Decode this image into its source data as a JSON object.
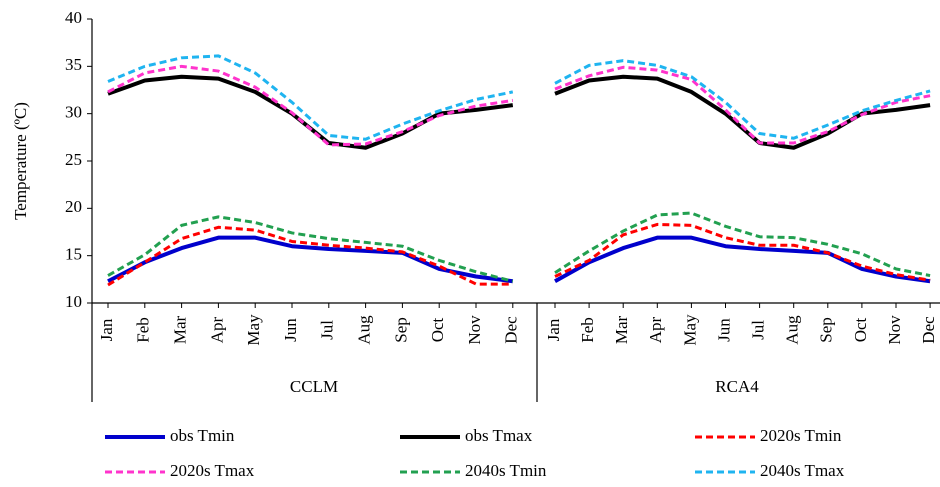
{
  "chart_data": {
    "type": "line",
    "y_label": "Temperature (ºC)",
    "ylim": [
      10,
      40
    ],
    "yticks": [
      10,
      15,
      20,
      25,
      30,
      35,
      40
    ],
    "categories": [
      "Jan",
      "Feb",
      "Mar",
      "Apr",
      "May",
      "Jun",
      "Jul",
      "Aug",
      "Sep",
      "Oct",
      "Nov",
      "Dec"
    ],
    "panels": [
      "CCLM",
      "RCA4"
    ],
    "series": [
      {
        "name": "obs Tmin",
        "color": "#0000cc",
        "dashed": false,
        "values": [
          [
            12.3,
            14.3,
            15.8,
            16.9,
            16.9,
            16.0,
            15.7,
            15.5,
            15.3,
            13.6,
            12.8,
            12.3
          ],
          [
            12.3,
            14.3,
            15.8,
            16.9,
            16.9,
            16.0,
            15.7,
            15.5,
            15.3,
            13.6,
            12.8,
            12.3
          ]
        ]
      },
      {
        "name": "obs Tmax",
        "color": "#000000",
        "dashed": false,
        "values": [
          [
            32.1,
            33.5,
            33.9,
            33.7,
            32.3,
            30.0,
            26.9,
            26.4,
            27.9,
            30.0,
            30.4,
            30.9
          ],
          [
            32.1,
            33.5,
            33.9,
            33.7,
            32.3,
            30.0,
            26.9,
            26.4,
            27.9,
            30.0,
            30.4,
            30.9
          ]
        ]
      },
      {
        "name": "2020s Tmin",
        "color": "#ff0000",
        "dashed": true,
        "values": [
          [
            11.9,
            14.3,
            16.8,
            18.0,
            17.7,
            16.5,
            16.1,
            15.8,
            15.4,
            13.9,
            12.0,
            12.0
          ],
          [
            12.8,
            14.5,
            17.2,
            18.3,
            18.2,
            16.9,
            16.1,
            16.1,
            15.3,
            13.9,
            13.0,
            12.4
          ]
        ]
      },
      {
        "name": "2020s Tmax",
        "color": "#ff33cc",
        "dashed": true,
        "values": [
          [
            32.3,
            34.3,
            35.0,
            34.5,
            32.8,
            30.1,
            26.7,
            26.8,
            28.1,
            29.8,
            30.8,
            31.4
          ],
          [
            32.6,
            34.0,
            34.9,
            34.6,
            33.6,
            30.4,
            26.9,
            26.9,
            28.1,
            29.9,
            31.2,
            31.9
          ]
        ]
      },
      {
        "name": "2040s Tmin",
        "color": "#22a050",
        "dashed": true,
        "values": [
          [
            12.9,
            15.1,
            18.2,
            19.1,
            18.5,
            17.4,
            16.8,
            16.4,
            16.0,
            14.5,
            13.3,
            12.3
          ],
          [
            13.2,
            15.5,
            17.6,
            19.3,
            19.5,
            18.1,
            17.0,
            16.9,
            16.2,
            15.2,
            13.6,
            12.9
          ]
        ]
      },
      {
        "name": "2040s Tmax",
        "color": "#1fb4f0",
        "dashed": true,
        "values": [
          [
            33.4,
            35.0,
            35.9,
            36.1,
            34.3,
            31.2,
            27.7,
            27.3,
            28.9,
            30.3,
            31.5,
            32.3
          ],
          [
            33.2,
            35.1,
            35.6,
            35.1,
            33.9,
            31.2,
            27.9,
            27.4,
            28.8,
            30.3,
            31.4,
            32.4
          ]
        ]
      }
    ]
  }
}
